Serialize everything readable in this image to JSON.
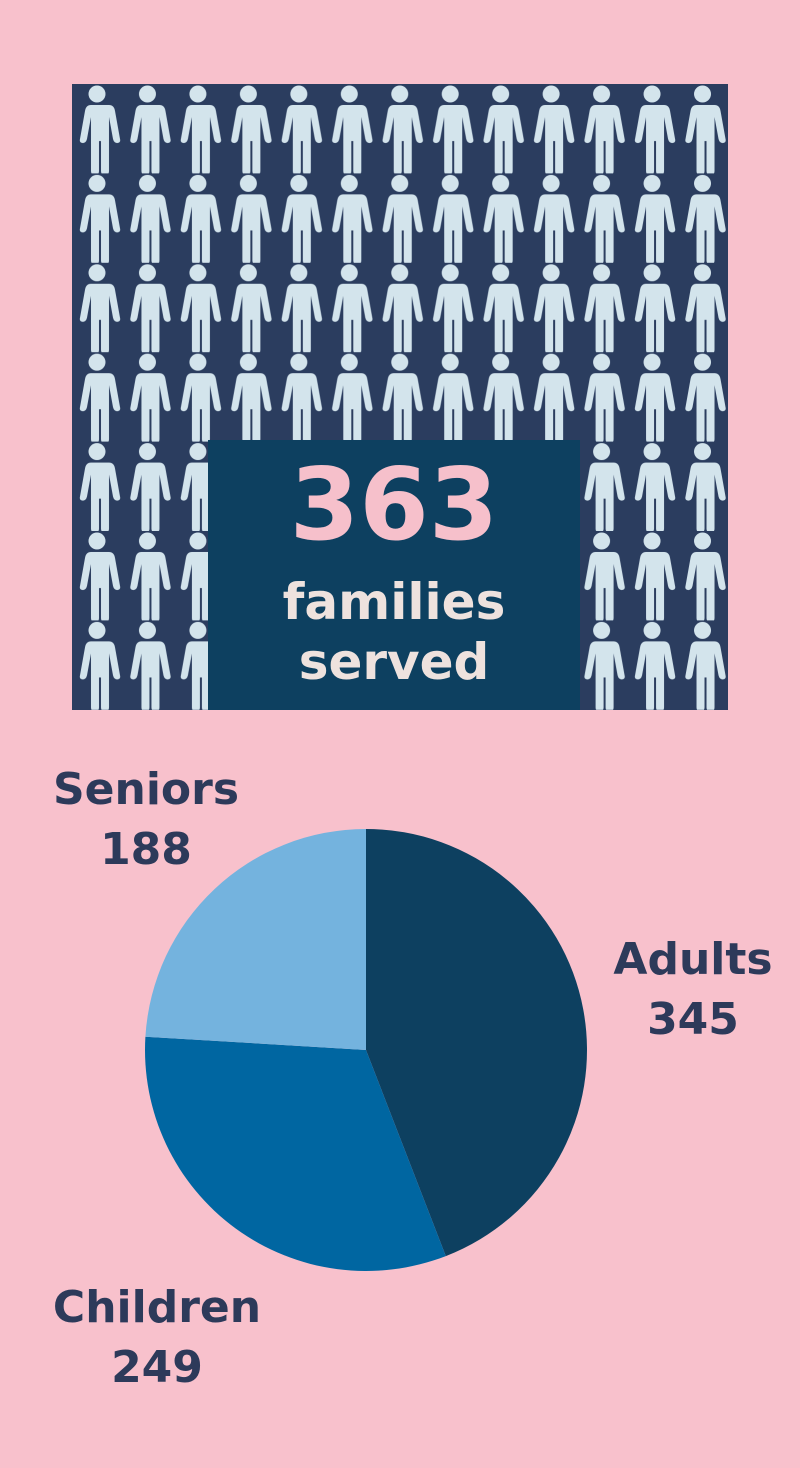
{
  "stat": {
    "value": 363,
    "label": "families served"
  },
  "chart_data": {
    "type": "pie",
    "categories": [
      "Adults",
      "Children",
      "Seniors"
    ],
    "values": [
      345,
      249,
      188
    ],
    "colors": [
      "#0d4060",
      "#0066a1",
      "#74b3de"
    ]
  }
}
